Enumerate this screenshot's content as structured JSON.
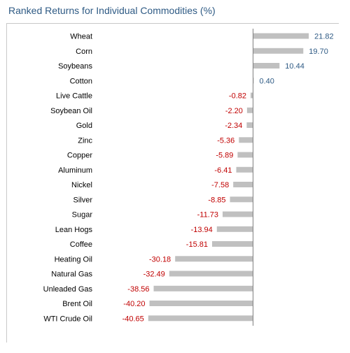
{
  "chart_data": {
    "type": "bar",
    "orientation": "horizontal",
    "title": "Ranked Returns for Individual Commodities (%)",
    "xlabel": "",
    "ylabel": "",
    "xlim": [
      -41,
      22
    ],
    "grid": false,
    "categories": [
      "Wheat",
      "Corn",
      "Soybeans",
      "Cotton",
      "Live Cattle",
      "Soybean Oil",
      "Gold",
      "Zinc",
      "Copper",
      "Aluminum",
      "Nickel",
      "Silver",
      "Sugar",
      "Lean Hogs",
      "Coffee",
      "Heating Oil",
      "Natural Gas",
      "Unleaded Gas",
      "Brent Oil",
      "WTI Crude Oil"
    ],
    "values": [
      21.82,
      19.7,
      10.44,
      0.4,
      -0.82,
      -2.2,
      -2.34,
      -5.36,
      -5.89,
      -6.41,
      -7.58,
      -8.85,
      -11.73,
      -13.94,
      -15.81,
      -30.18,
      -32.49,
      -38.56,
      -40.2,
      -40.65
    ],
    "value_labels": [
      "21.82",
      "19.70",
      "10.44",
      "0.40",
      "-0.82",
      "-2.20",
      "-2.34",
      "-5.36",
      "-5.89",
      "-6.41",
      "-7.58",
      "-8.85",
      "-11.73",
      "-13.94",
      "-15.81",
      "-30.18",
      "-32.49",
      "-38.56",
      "-40.20",
      "-40.65"
    ],
    "colors": {
      "bar": "#c0c0c0",
      "positive_label": "#2e5a84",
      "negative_label": "#c00000",
      "axis": "#808080",
      "title": "#2e5a84"
    }
  }
}
